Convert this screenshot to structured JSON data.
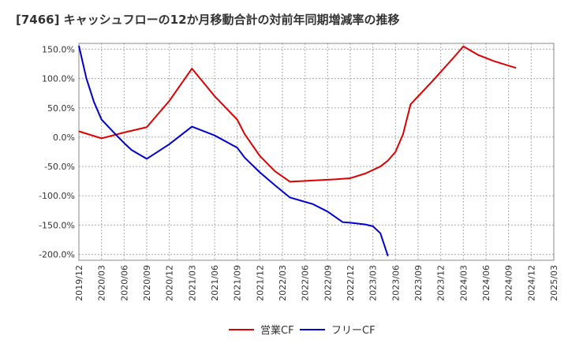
{
  "chart_data": {
    "type": "line",
    "title": "[7466]  キャッシュフローの12か月移動合計の対前年同期増減率の推移",
    "xlabel": "",
    "ylabel": "",
    "ylim": [
      -210,
      160
    ],
    "yticks": [
      150,
      100,
      50,
      0,
      -50,
      -100,
      -150,
      -200
    ],
    "ytick_labels": [
      "150.0%",
      "100.0%",
      "50.0%",
      "0.0%",
      "-50.0%",
      "-100.0%",
      "-150.0%",
      "-200.0%"
    ],
    "xticks": [
      "2019/12",
      "2020/03",
      "2020/06",
      "2020/09",
      "2020/12",
      "2021/03",
      "2021/06",
      "2021/09",
      "2021/12",
      "2022/03",
      "2022/06",
      "2022/09",
      "2022/12",
      "2023/03",
      "2023/06",
      "2023/09",
      "2023/12",
      "2024/03",
      "2024/06",
      "2024/09",
      "2024/12",
      "2025/03"
    ],
    "grid": true,
    "legend_position": "bottom-center",
    "series": [
      {
        "name": "営業CF",
        "color": "#dd0000",
        "points": [
          [
            0,
            10
          ],
          [
            3,
            -2
          ],
          [
            6,
            8
          ],
          [
            9,
            17
          ],
          [
            12,
            62
          ],
          [
            15,
            117
          ],
          [
            18,
            70
          ],
          [
            21,
            30
          ],
          [
            22,
            5
          ],
          [
            24,
            -32
          ],
          [
            26,
            -58
          ],
          [
            28,
            -76
          ],
          [
            31,
            -74
          ],
          [
            34,
            -72
          ],
          [
            36,
            -70
          ],
          [
            38,
            -62
          ],
          [
            40,
            -50
          ],
          [
            41,
            -40
          ],
          [
            42,
            -25
          ],
          [
            43,
            5
          ],
          [
            44,
            56
          ],
          [
            47,
            97
          ],
          [
            50,
            140
          ],
          [
            51,
            155
          ],
          [
            53,
            140
          ],
          [
            55,
            130
          ],
          [
            58,
            118
          ]
        ]
      },
      {
        "name": "フリーCF",
        "color": "#0000cc",
        "points": [
          [
            0,
            156
          ],
          [
            1,
            100
          ],
          [
            2,
            60
          ],
          [
            3,
            30
          ],
          [
            5,
            3
          ],
          [
            6,
            -10
          ],
          [
            7,
            -22
          ],
          [
            9,
            -37
          ],
          [
            12,
            -12
          ],
          [
            14,
            8
          ],
          [
            15,
            18
          ],
          [
            18,
            3
          ],
          [
            21,
            -18
          ],
          [
            22,
            -35
          ],
          [
            24,
            -60
          ],
          [
            26,
            -82
          ],
          [
            28,
            -103
          ],
          [
            31,
            -114
          ],
          [
            33,
            -127
          ],
          [
            35,
            -145
          ],
          [
            36,
            -146
          ],
          [
            38,
            -149
          ],
          [
            39,
            -152
          ],
          [
            40,
            -164
          ],
          [
            41,
            -203
          ]
        ]
      }
    ]
  }
}
